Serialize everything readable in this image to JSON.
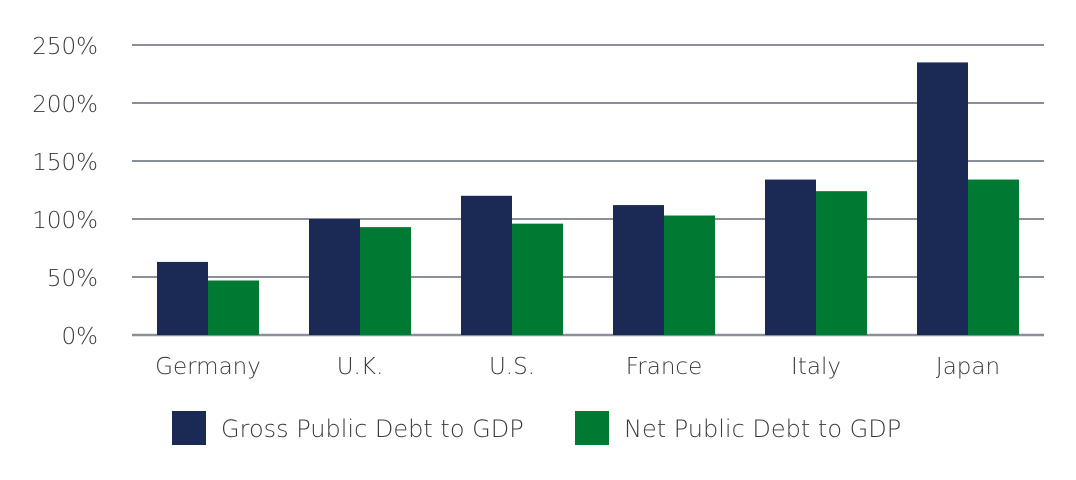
{
  "chart_data": {
    "type": "bar",
    "title": "",
    "xlabel": "",
    "ylabel": "",
    "categories": [
      "Germany",
      "U.K.",
      "U.S.",
      "France",
      "Italy",
      "Japan"
    ],
    "series": [
      {
        "name": "Gross Public Debt to GDP",
        "color": "#1b2a55",
        "values": [
          63,
          100,
          120,
          112,
          134,
          235
        ]
      },
      {
        "name": "Net Public Debt to GDP",
        "color": "#007a33",
        "values": [
          47,
          93,
          96,
          103,
          124,
          134
        ]
      }
    ],
    "ylim": [
      0,
      250
    ],
    "yticks": [
      0,
      50,
      100,
      150,
      200,
      250
    ],
    "ytick_labels": [
      "0%",
      "50%",
      "100%",
      "150%",
      "200%",
      "250%"
    ],
    "grid": true,
    "gridline_color": "#8a8f99",
    "legend": "bottom"
  }
}
